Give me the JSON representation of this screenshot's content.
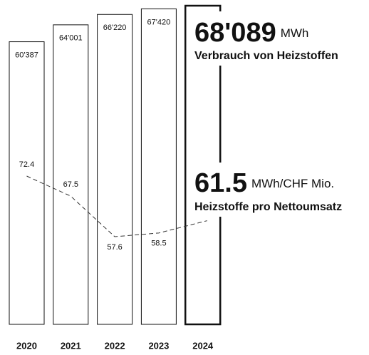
{
  "chart_data": {
    "type": "bar",
    "categories": [
      "2020",
      "2021",
      "2022",
      "2023",
      "2024"
    ],
    "series": [
      {
        "name": "Verbrauch von Heizstoffen",
        "unit": "MWh",
        "type": "bar",
        "color": "#111111",
        "values": [
          60387,
          64001,
          66220,
          67420,
          68089
        ],
        "value_labels": [
          "60'387",
          "64'001",
          "66'220",
          "67'420",
          "68'089"
        ]
      },
      {
        "name": "Heizstoffe pro Nettoumsatz",
        "unit": "MWh/CHF Mio.",
        "type": "line",
        "axis": "y2",
        "color": "#333333",
        "values": [
          72.4,
          67.5,
          57.6,
          58.5,
          61.5
        ]
      }
    ]
  }
}
